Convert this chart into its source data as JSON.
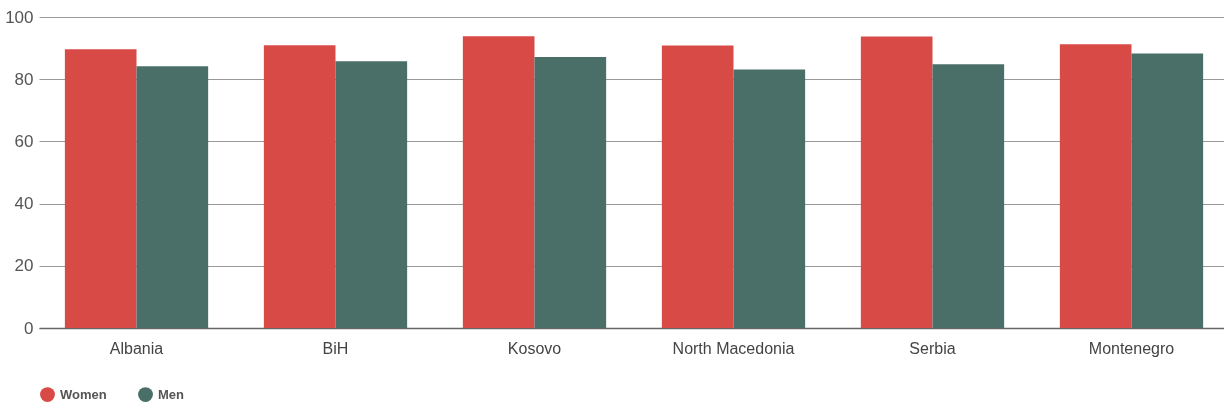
{
  "chart_data": {
    "type": "bar",
    "categories": [
      "Albania",
      "BiH",
      "Kosovo",
      "North Macedonia",
      "Serbia",
      "Montenegro"
    ],
    "series": [
      {
        "name": "Women",
        "color": "#d84a46",
        "values": [
          89.6,
          90.9,
          93.8,
          90.8,
          93.7,
          91.2
        ]
      },
      {
        "name": "Men",
        "color": "#4a6f69",
        "values": [
          84.2,
          85.8,
          87.1,
          83.1,
          84.8,
          88.3
        ]
      }
    ],
    "ylim": [
      0,
      100
    ],
    "yticks": [
      0,
      20,
      40,
      60,
      80,
      100
    ],
    "grid": "y",
    "legend": "bottom"
  }
}
